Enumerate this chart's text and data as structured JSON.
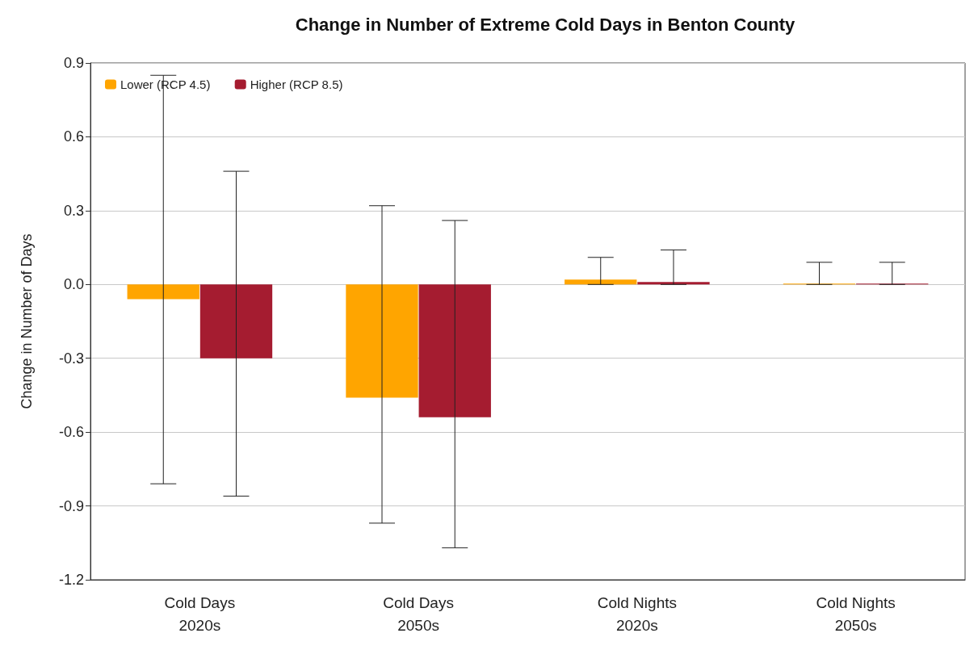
{
  "chart_data": {
    "type": "bar",
    "title": "Change in Number of Extreme Cold Days in Benton County",
    "ylabel": "Change in Number of Days",
    "categories": [
      "Cold Days\n2020s",
      "Cold Days\n2050s",
      "Cold Nights\n2020s",
      "Cold Nights\n2050s"
    ],
    "series": [
      {
        "name": "Lower (RCP 4.5)",
        "color": "#ffa500",
        "values": [
          -0.06,
          -0.46,
          0.02,
          0
        ],
        "errors": [
          [
            -0.81,
            0.85
          ],
          [
            -0.97,
            0.32
          ],
          [
            0,
            0.11
          ],
          [
            0,
            0.09
          ]
        ]
      },
      {
        "name": "Higher (RCP 8.5)",
        "color": "#a51c30",
        "values": [
          -0.3,
          -0.54,
          0.01,
          0
        ],
        "errors": [
          [
            -0.86,
            0.46
          ],
          [
            -1.07,
            0.26
          ],
          [
            0,
            0.14
          ],
          [
            0,
            0.09
          ]
        ]
      }
    ],
    "ylim": [
      -1.2,
      0.9
    ],
    "yticks": [
      -1.2,
      -0.9,
      -0.6,
      -0.3,
      {
        "value": 0,
        "label": "0.0"
      },
      0.3,
      0.6,
      0.9
    ],
    "grid": "y",
    "legend": "top left"
  }
}
